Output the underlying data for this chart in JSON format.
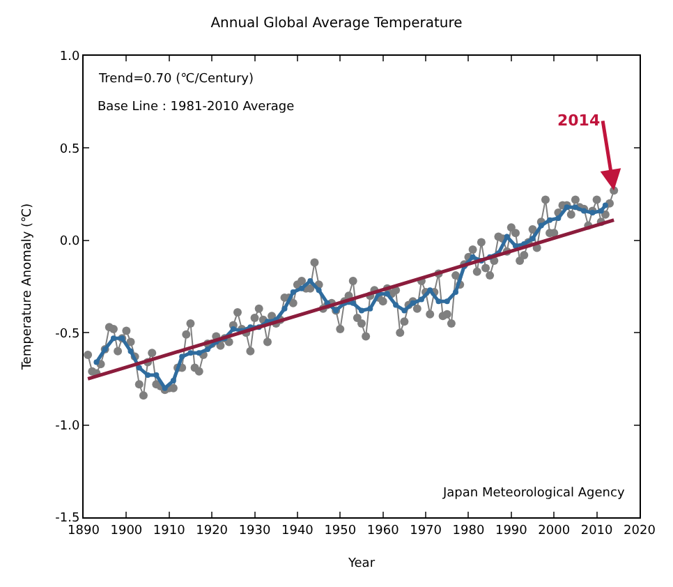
{
  "chart_data": {
    "type": "line",
    "title": "Annual Global Average Temperature",
    "xlabel": "Year",
    "ylabel": "Temperature Anomaly (℃)",
    "xlim": [
      1890,
      2020
    ],
    "xticks": [
      1890,
      1900,
      1910,
      1920,
      1930,
      1940,
      1950,
      1960,
      1970,
      1980,
      1990,
      2000,
      2010,
      2020
    ],
    "ylim": [
      -1.5,
      1.0
    ],
    "yticks": [
      {
        "value": 1.0,
        "label": "1.0"
      },
      {
        "value": 0.5,
        "label": "0.5"
      },
      {
        "value": 0,
        "label": "0.0"
      },
      {
        "value": -0.5,
        "label": "-0.5"
      },
      {
        "value": -1.0,
        "label": "-1.0"
      },
      {
        "value": -1.5,
        "label": "-1.5"
      }
    ],
    "series": [
      {
        "color": "#7f7f7f",
        "marker": "circle",
        "x": [
          1891,
          1892,
          1893,
          1894,
          1895,
          1896,
          1897,
          1898,
          1899,
          1900,
          1901,
          1902,
          1903,
          1904,
          1905,
          1906,
          1907,
          1908,
          1909,
          1910,
          1911,
          1912,
          1913,
          1914,
          1915,
          1916,
          1917,
          1918,
          1919,
          1920,
          1921,
          1922,
          1923,
          1924,
          1925,
          1926,
          1927,
          1928,
          1929,
          1930,
          1931,
          1932,
          1933,
          1934,
          1935,
          1936,
          1937,
          1938,
          1939,
          1940,
          1941,
          1942,
          1943,
          1944,
          1945,
          1946,
          1947,
          1948,
          1949,
          1950,
          1951,
          1952,
          1953,
          1954,
          1955,
          1956,
          1957,
          1958,
          1959,
          1960,
          1961,
          1962,
          1963,
          1964,
          1965,
          1966,
          1967,
          1968,
          1969,
          1970,
          1971,
          1972,
          1973,
          1974,
          1975,
          1976,
          1977,
          1978,
          1979,
          1980,
          1981,
          1982,
          1983,
          1984,
          1985,
          1986,
          1987,
          1988,
          1989,
          1990,
          1991,
          1992,
          1993,
          1994,
          1995,
          1996,
          1997,
          1998,
          1999,
          2000,
          2001,
          2002,
          2003,
          2004,
          2005,
          2006,
          2007,
          2008,
          2009,
          2010,
          2011,
          2012,
          2013,
          2014
        ],
        "values": [
          -0.62,
          -0.71,
          -0.72,
          -0.67,
          -0.59,
          -0.47,
          -0.48,
          -0.6,
          -0.53,
          -0.49,
          -0.55,
          -0.63,
          -0.78,
          -0.84,
          -0.66,
          -0.61,
          -0.78,
          -0.79,
          -0.81,
          -0.8,
          -0.8,
          -0.69,
          -0.69,
          -0.51,
          -0.45,
          -0.69,
          -0.71,
          -0.62,
          -0.56,
          -0.56,
          -0.52,
          -0.57,
          -0.53,
          -0.55,
          -0.46,
          -0.39,
          -0.48,
          -0.5,
          -0.6,
          -0.42,
          -0.37,
          -0.43,
          -0.55,
          -0.41,
          -0.45,
          -0.43,
          -0.31,
          -0.31,
          -0.34,
          -0.24,
          -0.22,
          -0.26,
          -0.26,
          -0.12,
          -0.24,
          -0.37,
          -0.35,
          -0.34,
          -0.38,
          -0.48,
          -0.33,
          -0.3,
          -0.22,
          -0.42,
          -0.45,
          -0.52,
          -0.3,
          -0.27,
          -0.31,
          -0.33,
          -0.26,
          -0.29,
          -0.27,
          -0.5,
          -0.44,
          -0.35,
          -0.33,
          -0.37,
          -0.22,
          -0.28,
          -0.4,
          -0.28,
          -0.18,
          -0.41,
          -0.4,
          -0.45,
          -0.19,
          -0.24,
          -0.13,
          -0.09,
          -0.05,
          -0.17,
          -0.01,
          -0.15,
          -0.19,
          -0.11,
          0.02,
          0.01,
          -0.06,
          0.07,
          0.04,
          -0.11,
          -0.08,
          -0.01,
          0.06,
          -0.04,
          0.1,
          0.22,
          0.04,
          0.04,
          0.15,
          0.19,
          0.19,
          0.14,
          0.22,
          0.18,
          0.17,
          0.08,
          0.16,
          0.22,
          0.1,
          0.14,
          0.2,
          0.27
        ]
      },
      {
        "color": "#2f6c9e",
        "marker": "circle",
        "x": [
          1893,
          1895,
          1897,
          1899,
          1901,
          1903,
          1905,
          1907,
          1909,
          1911,
          1913,
          1915,
          1917,
          1919,
          1921,
          1923,
          1925,
          1927,
          1929,
          1931,
          1933,
          1935,
          1937,
          1939,
          1941,
          1943,
          1945,
          1947,
          1949,
          1951,
          1953,
          1955,
          1957,
          1959,
          1961,
          1963,
          1965,
          1967,
          1969,
          1971,
          1973,
          1975,
          1977,
          1979,
          1981,
          1983,
          1985,
          1987,
          1989,
          1991,
          1993,
          1995,
          1997,
          1999,
          2001,
          2003,
          2005,
          2007,
          2009,
          2011,
          2012
        ],
        "values": [
          -0.66,
          -0.59,
          -0.53,
          -0.53,
          -0.6,
          -0.69,
          -0.73,
          -0.73,
          -0.8,
          -0.76,
          -0.63,
          -0.61,
          -0.61,
          -0.59,
          -0.55,
          -0.53,
          -0.48,
          -0.49,
          -0.47,
          -0.47,
          -0.44,
          -0.43,
          -0.37,
          -0.28,
          -0.26,
          -0.22,
          -0.27,
          -0.34,
          -0.38,
          -0.34,
          -0.34,
          -0.38,
          -0.37,
          -0.29,
          -0.29,
          -0.35,
          -0.38,
          -0.34,
          -0.32,
          -0.27,
          -0.33,
          -0.33,
          -0.28,
          -0.14,
          -0.09,
          -0.11,
          -0.09,
          -0.07,
          0.02,
          -0.03,
          -0.02,
          0.01,
          0.08,
          0.11,
          0.12,
          0.18,
          0.18,
          0.16,
          0.15,
          0.16,
          0.19
        ]
      },
      {
        "color": "#8b1c3c",
        "marker": "none",
        "x": [
          1891,
          2014
        ],
        "values": [
          -0.75,
          0.11
        ]
      }
    ],
    "annotations": [
      "Trend=0.70 (℃/Century)",
      "Base Line : 1981-2010 Average",
      "Japan Meteorological Agency",
      {
        "text": "2014",
        "x": 2014,
        "y": 0.27
      }
    ]
  }
}
